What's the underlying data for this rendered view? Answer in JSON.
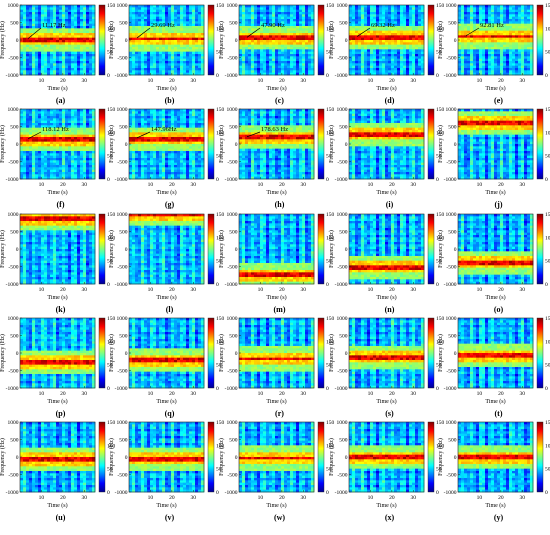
{
  "common": {
    "ylabel": "Frequency (Hz)",
    "xlabel": "Time (s)",
    "yticks": [
      "1000",
      "500",
      "0",
      "-500",
      "-1000"
    ],
    "xticks": [
      "10",
      "20",
      "30"
    ],
    "cticks": [
      "150",
      "100",
      "50",
      "0"
    ]
  },
  "chart_data": [
    {
      "type": "heatmap",
      "panel": "(a)",
      "annotation": "11.17 Hz",
      "band_hz": 11.17,
      "ylim": [
        -1000,
        1000
      ],
      "xlim": [
        0,
        35
      ],
      "clim": [
        0,
        150
      ]
    },
    {
      "type": "heatmap",
      "panel": "(b)",
      "annotation": "29.69 Hz",
      "band_hz": 29.69,
      "ylim": [
        -1000,
        1000
      ],
      "xlim": [
        0,
        35
      ],
      "clim": [
        0,
        150
      ]
    },
    {
      "type": "heatmap",
      "panel": "(c)",
      "annotation": "47.90 Hz",
      "band_hz": 47.9,
      "ylim": [
        -1000,
        1000
      ],
      "xlim": [
        0,
        35
      ],
      "clim": [
        0,
        150
      ]
    },
    {
      "type": "heatmap",
      "panel": "(d)",
      "annotation": "69.32 Hz",
      "band_hz": 69.32,
      "ylim": [
        -1000,
        1000
      ],
      "xlim": [
        0,
        35
      ],
      "clim": [
        0,
        150
      ]
    },
    {
      "type": "heatmap",
      "panel": "(e)",
      "annotation": "92.81 Hz",
      "band_hz": 92.81,
      "ylim": [
        -1000,
        1000
      ],
      "xlim": [
        0,
        35
      ],
      "clim": [
        0,
        150
      ]
    },
    {
      "type": "heatmap",
      "panel": "(f)",
      "annotation": "118.12 Hz",
      "band_hz": 118.12,
      "ylim": [
        -1000,
        1000
      ],
      "xlim": [
        0,
        35
      ],
      "clim": [
        0,
        150
      ]
    },
    {
      "type": "heatmap",
      "panel": "(g)",
      "annotation": "147.96Hz",
      "band_hz": 147.96,
      "ylim": [
        -1000,
        1000
      ],
      "xlim": [
        0,
        35
      ],
      "clim": [
        0,
        150
      ]
    },
    {
      "type": "heatmap",
      "panel": "(h)",
      "annotation": "178.63 Hz",
      "band_hz": 178.63,
      "ylim": [
        -1000,
        1000
      ],
      "xlim": [
        0,
        35
      ],
      "clim": [
        0,
        150
      ]
    },
    {
      "type": "heatmap",
      "panel": "(i)",
      "annotation": "",
      "band_hz": 280,
      "ylim": [
        -1000,
        1000
      ],
      "xlim": [
        0,
        35
      ],
      "clim": [
        0,
        150
      ]
    },
    {
      "type": "heatmap",
      "panel": "(j)",
      "annotation": "",
      "band_hz": 600,
      "ylim": [
        -1000,
        1000
      ],
      "xlim": [
        0,
        35
      ],
      "clim": [
        0,
        150
      ]
    },
    {
      "type": "heatmap",
      "panel": "(k)",
      "annotation": "",
      "band_hz": 850,
      "ylim": [
        -1000,
        1000
      ],
      "xlim": [
        0,
        35
      ],
      "clim": [
        0,
        150
      ]
    },
    {
      "type": "heatmap",
      "panel": "(l)",
      "annotation": "",
      "band_hz": 990,
      "ylim": [
        -1000,
        1000
      ],
      "xlim": [
        0,
        35
      ],
      "clim": [
        0,
        150
      ]
    },
    {
      "type": "heatmap",
      "panel": "(m)",
      "annotation": "",
      "band_hz": -750,
      "ylim": [
        -1000,
        1000
      ],
      "xlim": [
        0,
        35
      ],
      "clim": [
        0,
        150
      ]
    },
    {
      "type": "heatmap",
      "panel": "(n)",
      "annotation": "",
      "band_hz": -520,
      "ylim": [
        -1000,
        1000
      ],
      "xlim": [
        0,
        35
      ],
      "clim": [
        0,
        150
      ]
    },
    {
      "type": "heatmap",
      "panel": "(o)",
      "annotation": "",
      "band_hz": -380,
      "ylim": [
        -1000,
        1000
      ],
      "xlim": [
        0,
        35
      ],
      "clim": [
        0,
        150
      ]
    },
    {
      "type": "heatmap",
      "panel": "(p)",
      "annotation": "",
      "band_hz": -270,
      "ylim": [
        -1000,
        1000
      ],
      "xlim": [
        0,
        35
      ],
      "clim": [
        0,
        150
      ]
    },
    {
      "type": "heatmap",
      "panel": "(q)",
      "annotation": "",
      "band_hz": -220,
      "ylim": [
        -1000,
        1000
      ],
      "xlim": [
        0,
        35
      ],
      "clim": [
        0,
        150
      ]
    },
    {
      "type": "heatmap",
      "panel": "(r)",
      "annotation": "",
      "band_hz": -160,
      "ylim": [
        -1000,
        1000
      ],
      "xlim": [
        0,
        35
      ],
      "clim": [
        0,
        150
      ]
    },
    {
      "type": "heatmap",
      "panel": "(s)",
      "annotation": "",
      "band_hz": -120,
      "ylim": [
        -1000,
        1000
      ],
      "xlim": [
        0,
        35
      ],
      "clim": [
        0,
        150
      ]
    },
    {
      "type": "heatmap",
      "panel": "(t)",
      "annotation": "",
      "band_hz": -90,
      "ylim": [
        -1000,
        1000
      ],
      "xlim": [
        0,
        35
      ],
      "clim": [
        0,
        150
      ]
    },
    {
      "type": "heatmap",
      "panel": "(u)",
      "annotation": "",
      "band_hz": -70,
      "ylim": [
        -1000,
        1000
      ],
      "xlim": [
        0,
        35
      ],
      "clim": [
        0,
        150
      ]
    },
    {
      "type": "heatmap",
      "panel": "(v)",
      "annotation": "",
      "band_hz": -50,
      "ylim": [
        -1000,
        1000
      ],
      "xlim": [
        0,
        35
      ],
      "clim": [
        0,
        150
      ]
    },
    {
      "type": "heatmap",
      "panel": "(w)",
      "annotation": "",
      "band_hz": -35,
      "ylim": [
        -1000,
        1000
      ],
      "xlim": [
        0,
        35
      ],
      "clim": [
        0,
        150
      ]
    },
    {
      "type": "heatmap",
      "panel": "(x)",
      "annotation": "",
      "band_hz": -20,
      "ylim": [
        -1000,
        1000
      ],
      "xlim": [
        0,
        35
      ],
      "clim": [
        0,
        150
      ]
    },
    {
      "type": "heatmap",
      "panel": "(y)",
      "annotation": "",
      "band_hz": -10,
      "ylim": [
        -1000,
        1000
      ],
      "xlim": [
        0,
        35
      ],
      "clim": [
        0,
        150
      ]
    }
  ]
}
